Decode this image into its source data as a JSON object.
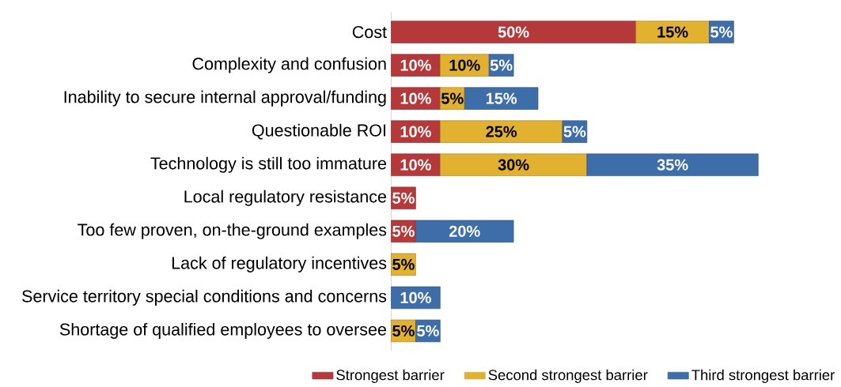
{
  "chart_data": {
    "type": "bar",
    "orientation": "horizontal",
    "stacked": true,
    "legend": "bottom",
    "categories": [
      "Cost",
      "Complexity and confusion",
      "Inability to secure internal approval/funding",
      "Questionable ROI",
      "Technology is still too immature",
      "Local regulatory resistance",
      "Too few proven, on-the-ground examples",
      "Lack of regulatory incentives",
      "Service territory special conditions and concerns",
      "Shortage of qualified employees to oversee"
    ],
    "series": [
      {
        "name": "Strongest barrier",
        "color": "#b5393b",
        "values": [
          50,
          10,
          10,
          10,
          10,
          5,
          5,
          null,
          null,
          null
        ],
        "value_labels": [
          "50%",
          "10%",
          "10%",
          "10%",
          "10%",
          "5%",
          "5%",
          null,
          null,
          null
        ]
      },
      {
        "name": "Second strongest barrier",
        "color": "#e2b12f",
        "values": [
          15,
          10,
          5,
          25,
          30,
          null,
          null,
          5,
          null,
          5
        ],
        "value_labels": [
          "15%",
          "10%",
          "5%",
          "25%",
          "30%",
          null,
          null,
          "5%",
          null,
          "5%"
        ]
      },
      {
        "name": "Third strongest barrier",
        "color": "#3e6eaa",
        "values": [
          5,
          5,
          15,
          5,
          35,
          null,
          20,
          null,
          10,
          5
        ],
        "value_labels": [
          "5%",
          "5%",
          "15%",
          "5%",
          "35%",
          null,
          "20%",
          null,
          "10%",
          "5%"
        ]
      }
    ]
  }
}
